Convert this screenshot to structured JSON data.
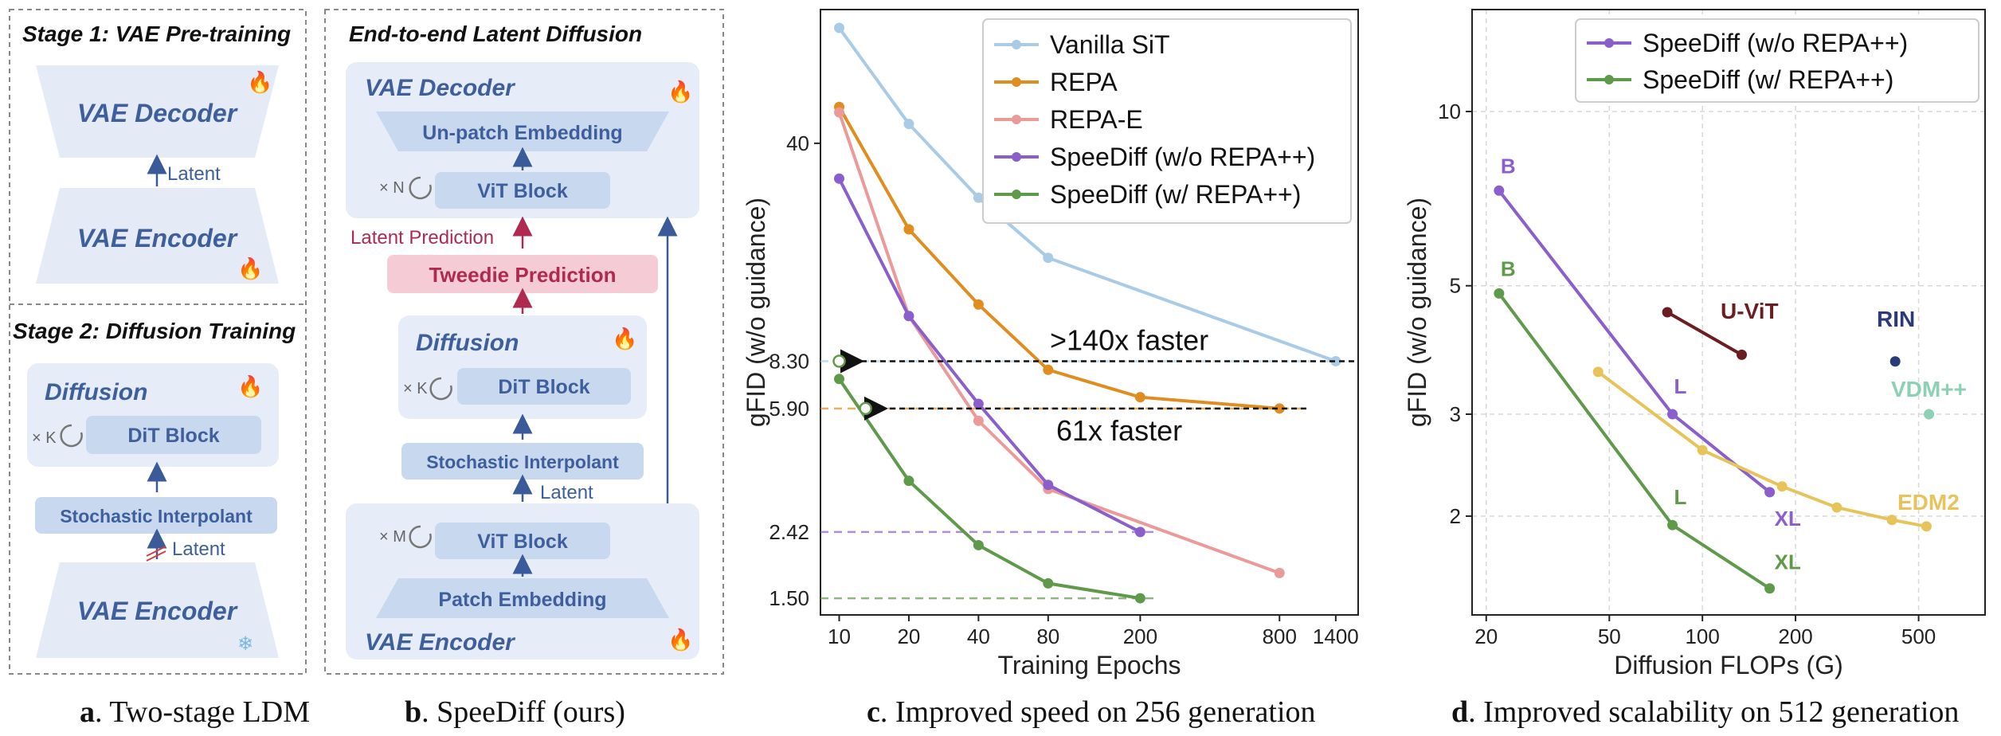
{
  "panel_a": {
    "stage1_title": "Stage 1: VAE Pre-training",
    "vae_decoder": "VAE Decoder",
    "latent": "Latent",
    "vae_encoder": "VAE Encoder",
    "stage2_title": "Stage 2: Diffusion Training",
    "diffusion": "Diffusion",
    "repeat_k": "× K",
    "dit_block": "DiT Block",
    "stochastic": "Stochastic Interpolant",
    "latent2": "Latent",
    "vae_encoder2": "VAE Encoder",
    "caption_letter": "a",
    "caption": ". Two-stage LDM"
  },
  "panel_b": {
    "title": "End-to-end Latent Diffusion",
    "vae_decoder": "VAE Decoder",
    "unpatch": "Un-patch Embedding",
    "repeat_n": "× N",
    "vit_block_top": "ViT Block",
    "latent_prediction": "Latent Prediction",
    "tweedie": "Tweedie Prediction",
    "diffusion": "Diffusion",
    "repeat_k": "× K",
    "dit_block": "DiT Block",
    "stochastic": "Stochastic Interpolant",
    "latent": "Latent",
    "repeat_m": "× M",
    "vit_block_bottom": "ViT Block",
    "patch": "Patch Embedding",
    "vae_encoder": "VAE Encoder",
    "caption_letter": "b",
    "caption": ". SpeeDiff (ours)"
  },
  "captions": {
    "c_letter": "c",
    "c_text": ". Improved speed on 256 generation",
    "d_letter": "d",
    "d_text": ". Improved scalability on 512 generation"
  },
  "colors": {
    "vanilla": "#a9cbe6",
    "repa": "#e08c1e",
    "repae": "#eb9a9a",
    "speediff_wo": "#8a5fcc",
    "speediff_w": "#5e9a4a",
    "uvit": "#6b1e22",
    "rin": "#2b3a78",
    "vdm": "#8cd0b5",
    "edm2": "#e6c45a"
  },
  "chart_data": [
    {
      "type": "line",
      "xscale": "log",
      "yscale": "log",
      "xlabel": "Training Epochs",
      "ylabel": "gFID (w/o guidance)",
      "xticks": [
        "10",
        "20",
        "40",
        "80",
        "200",
        "800",
        "1400"
      ],
      "yticks": [
        "40"
      ],
      "reference_lines": [
        {
          "value": "8.30",
          "label": "8.30",
          "color": "#a9cbe6"
        },
        {
          "value": "5.90",
          "label": "5.90",
          "color": "#e08c1e"
        },
        {
          "value": "2.42",
          "label": "2.42",
          "color": "#8a5fcc"
        },
        {
          "value": "1.50",
          "label": "1.50",
          "color": "#5e9a4a"
        }
      ],
      "annotations": [
        ">140x faster",
        "61x faster"
      ],
      "series": [
        {
          "name": "Vanilla SiT",
          "color": "#a9cbe6",
          "x": [
            10,
            20,
            40,
            80,
            1400
          ],
          "y": [
            92,
            46,
            27,
            17.5,
            8.3
          ]
        },
        {
          "name": "REPA",
          "color": "#e08c1e",
          "x": [
            10,
            20,
            40,
            80,
            200,
            800
          ],
          "y": [
            52,
            21.5,
            12.5,
            7.8,
            6.4,
            5.9
          ]
        },
        {
          "name": "REPA-E",
          "color": "#eb9a9a",
          "x": [
            10,
            20,
            40,
            80,
            800
          ],
          "y": [
            50,
            11.5,
            5.4,
            3.3,
            1.8
          ]
        },
        {
          "name": "SpeeDiff (w/o REPA++)",
          "color": "#8a5fcc",
          "x": [
            10,
            20,
            40,
            80,
            200
          ],
          "y": [
            31,
            11.5,
            6.1,
            3.4,
            2.42
          ]
        },
        {
          "name": "SpeeDiff (w/ REPA++)",
          "color": "#5e9a4a",
          "x": [
            10,
            20,
            40,
            80,
            200
          ],
          "y": [
            7.3,
            3.5,
            2.2,
            1.67,
            1.5
          ]
        }
      ],
      "markers": [
        {
          "label": "open-marker-8.30",
          "x": 10,
          "y": 8.3,
          "color": "#5e9a4a"
        },
        {
          "label": "open-marker-5.90",
          "x": 13,
          "y": 5.9,
          "color": "#5e9a4a"
        }
      ],
      "legend_position": "top-right",
      "grid": false
    },
    {
      "type": "line",
      "xscale": "log",
      "yscale": "log",
      "xlabel": "Diffusion FLOPs (G)",
      "ylabel": "gFID (w/o guidance)",
      "xticks": [
        "20",
        "50",
        "100",
        "200",
        "500"
      ],
      "yticks": [
        "10",
        "5",
        "3",
        "2"
      ],
      "legend_position": "top-right",
      "grid": true,
      "series": [
        {
          "name": "SpeeDiff (w/o REPA++)",
          "color": "#8a5fcc",
          "x": [
            22,
            80,
            165
          ],
          "y": [
            7.3,
            3.0,
            2.2
          ],
          "point_labels": [
            "B",
            "L",
            "XL"
          ]
        },
        {
          "name": "SpeeDiff (w/ REPA++)",
          "color": "#5e9a4a",
          "x": [
            22,
            80,
            165
          ],
          "y": [
            4.85,
            1.93,
            1.5
          ],
          "point_labels": [
            "B",
            "L",
            "XL"
          ]
        },
        {
          "name": "U-ViT",
          "color": "#6b1e22",
          "x": [
            77,
            134
          ],
          "y": [
            4.5,
            3.8
          ],
          "label": "U-ViT"
        },
        {
          "name": "EDM2",
          "color": "#e6c45a",
          "x": [
            46,
            100,
            181,
            272,
            410,
            530
          ],
          "y": [
            3.55,
            2.6,
            2.25,
            2.07,
            1.97,
            1.92
          ],
          "label": "EDM2"
        },
        {
          "name": "RIN",
          "color": "#2b3a78",
          "x": [
            420
          ],
          "y": [
            3.7
          ],
          "label": "RIN"
        },
        {
          "name": "VDM++",
          "color": "#8cd0b5",
          "x": [
            540
          ],
          "y": [
            3.0
          ],
          "label": "VDM++"
        }
      ]
    }
  ]
}
